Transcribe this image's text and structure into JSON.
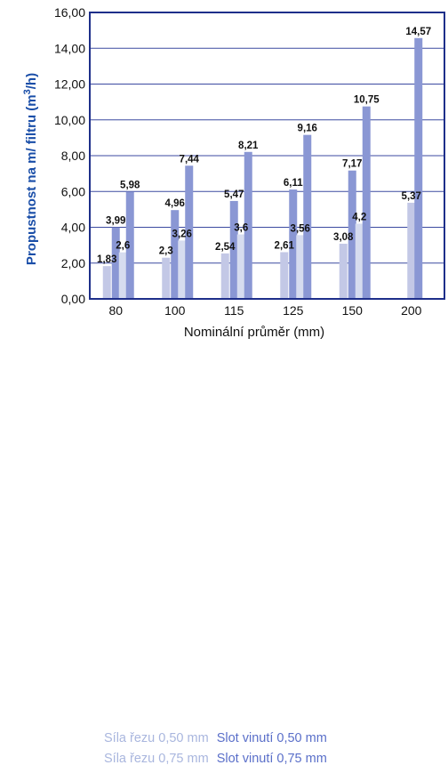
{
  "chart_data": {
    "type": "bar",
    "title": "",
    "xlabel": "Nominální průměr (mm)",
    "ylabel_text": "Propustnost na m/ filtru (m",
    "ylabel_sup": "3",
    "ylabel_tail": "/h)",
    "categories": [
      "80",
      "100",
      "115",
      "125",
      "150",
      "200"
    ],
    "ylim": [
      0,
      16
    ],
    "yticks": [
      "0,00",
      "2,00",
      "4,00",
      "6,00",
      "8,00",
      "10,00",
      "12,00",
      "14,00",
      "16,00"
    ],
    "grid": true,
    "legend_position": "bottom",
    "series": [
      {
        "name": "Síla řezu 0,50 mm",
        "color": "#c3c8e6",
        "values": [
          1.83,
          2.3,
          2.54,
          2.61,
          3.08,
          5.37
        ],
        "labels": [
          "1,83",
          "2,3",
          "2,54",
          "2,61",
          "3,08",
          "5,37"
        ]
      },
      {
        "name": "Slot vinutí 0,50 mm",
        "color": "#8a97d4",
        "values": [
          3.99,
          4.96,
          5.47,
          6.11,
          7.17,
          null
        ],
        "labels": [
          "3,99",
          "4,96",
          "5,47",
          "6,11",
          "7,17",
          ""
        ]
      },
      {
        "name": "Síla řezu 0,75 mm",
        "color": "#d6dcef",
        "values": [
          2.6,
          3.26,
          3.6,
          3.56,
          4.2,
          null
        ],
        "labels": [
          "2,6",
          "3,26",
          "3,6",
          "3,56",
          "4,2",
          ""
        ]
      },
      {
        "name": "Slot vinutí 0,75 mm",
        "color": "#8a97d4",
        "values": [
          5.98,
          7.44,
          8.21,
          9.16,
          10.75,
          14.57
        ],
        "labels": [
          "5,98",
          "7,44",
          "8,21",
          "9,16",
          "10,75",
          "14,57"
        ]
      }
    ]
  },
  "legend": {
    "row1_left": "Síla řezu 0,50 mm",
    "row1_right": "Slot vinutí 0,50 mm",
    "row2_left": "Síla řezu 0,75 mm",
    "row2_right": "Slot vinutí 0,75 mm",
    "left_color": "#a9b6de",
    "right_color": "#5a6fc9"
  }
}
